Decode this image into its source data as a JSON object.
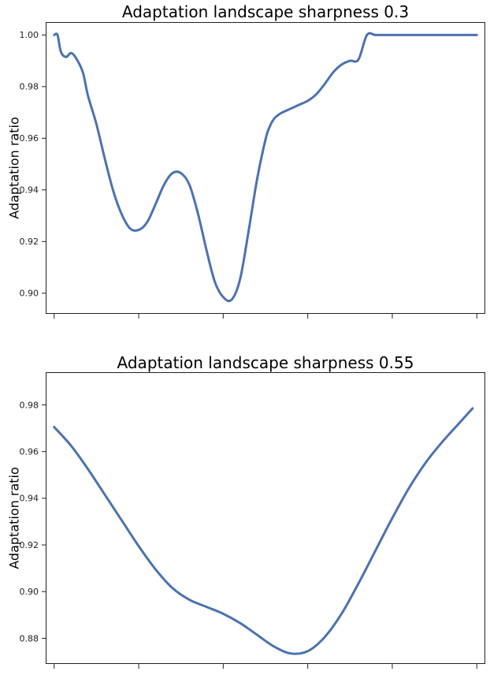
{
  "colors": {
    "series": "#4c72b0"
  },
  "chart_data": [
    {
      "type": "line",
      "title": "Adaptation landscape sharpness 0.3",
      "ylabel": "Adaptation ratio",
      "ylim": [
        0.892,
        1.005
      ],
      "yticks": [
        0.9,
        0.92,
        0.94,
        0.96,
        0.98,
        1.0
      ],
      "ytick_labels": [
        "0.90",
        "0.92",
        "0.94",
        "0.96",
        "0.98",
        "1.00"
      ],
      "xlim": [
        -0.1,
        5.1
      ],
      "xticks": [
        0,
        1,
        2,
        3,
        4,
        5
      ],
      "xtick_labels": [],
      "series": [
        {
          "x": [
            0.0,
            0.04,
            0.08,
            0.14,
            0.2,
            0.26,
            0.34,
            0.4,
            0.5,
            0.6,
            0.7,
            0.8,
            0.9,
            1.0,
            1.1,
            1.2,
            1.3,
            1.4,
            1.5,
            1.6,
            1.7,
            1.8,
            1.9,
            2.0,
            2.1,
            2.2,
            2.3,
            2.4,
            2.5,
            2.55,
            2.6,
            2.65,
            2.7,
            2.8,
            2.9,
            3.0,
            3.1,
            3.2,
            3.3,
            3.4,
            3.5,
            3.6,
            3.7,
            3.8,
            3.9,
            4.0,
            4.1,
            4.2,
            4.3,
            4.4,
            4.5,
            4.55,
            4.6,
            4.66,
            4.7,
            4.8,
            4.9,
            5.0
          ],
          "y": [
            1.0,
            1.0,
            0.9935,
            0.9915,
            0.993,
            0.991,
            0.9855,
            0.9765,
            0.9655,
            0.952,
            0.9395,
            0.9305,
            0.925,
            0.9245,
            0.9275,
            0.9345,
            0.942,
            0.9465,
            0.9465,
            0.942,
            0.931,
            0.917,
            0.9045,
            0.8985,
            0.8975,
            0.9055,
            0.924,
            0.944,
            0.9595,
            0.9645,
            0.9675,
            0.969,
            0.97,
            0.9715,
            0.973,
            0.9745,
            0.977,
            0.981,
            0.9855,
            0.9885,
            0.99,
            0.9905,
            1.0,
            1.0,
            1.0,
            1.0,
            1.0,
            1.0,
            1.0,
            1.0,
            1.0,
            1.0,
            1.0,
            1.0,
            1.0,
            1.0,
            1.0,
            1.0
          ]
        }
      ]
    },
    {
      "type": "line",
      "title": "Adaptation landscape sharpness 0.55",
      "ylabel": "Adaptation ratio",
      "ylim": [
        0.869,
        0.994
      ],
      "yticks": [
        0.88,
        0.9,
        0.92,
        0.94,
        0.96,
        0.98
      ],
      "ytick_labels": [
        "0.88",
        "0.90",
        "0.92",
        "0.94",
        "0.96",
        "0.98"
      ],
      "xlim": [
        -0.1,
        5.1
      ],
      "xticks": [
        0,
        1,
        2,
        3,
        4,
        5
      ],
      "xtick_labels": [],
      "series": [
        {
          "x": [
            0.0,
            0.2,
            0.4,
            0.6,
            0.8,
            1.0,
            1.2,
            1.4,
            1.6,
            1.8,
            2.0,
            2.2,
            2.4,
            2.6,
            2.8,
            3.0,
            3.2,
            3.4,
            3.6,
            3.8,
            4.0,
            4.2,
            4.4,
            4.6,
            4.8,
            4.9,
            4.95
          ],
          "y": [
            0.9705,
            0.9625,
            0.9525,
            0.9415,
            0.9305,
            0.9195,
            0.9095,
            0.9015,
            0.8965,
            0.8935,
            0.8905,
            0.8865,
            0.8815,
            0.8765,
            0.8735,
            0.8745,
            0.8805,
            0.8905,
            0.9035,
            0.9175,
            0.9315,
            0.9445,
            0.9555,
            0.9645,
            0.9725,
            0.9765,
            0.9785
          ]
        }
      ]
    }
  ]
}
